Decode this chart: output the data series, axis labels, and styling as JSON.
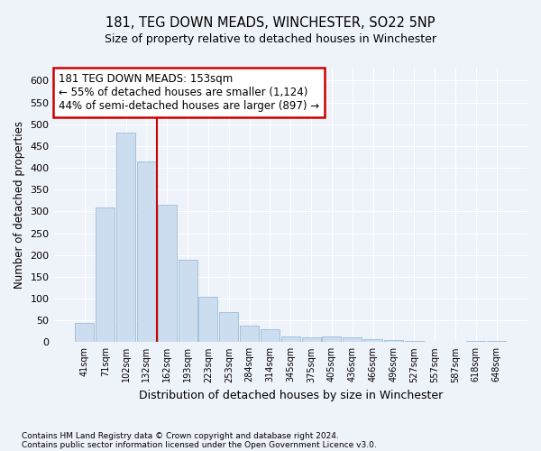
{
  "title": "181, TEG DOWN MEADS, WINCHESTER, SO22 5NP",
  "subtitle": "Size of property relative to detached houses in Winchester",
  "xlabel": "Distribution of detached houses by size in Winchester",
  "ylabel": "Number of detached properties",
  "footnote1": "Contains HM Land Registry data © Crown copyright and database right 2024.",
  "footnote2": "Contains public sector information licensed under the Open Government Licence v3.0.",
  "bar_color": "#cdddf0",
  "bar_edge_color": "#9bbcd8",
  "categories": [
    "41sqm",
    "71sqm",
    "102sqm",
    "132sqm",
    "162sqm",
    "193sqm",
    "223sqm",
    "253sqm",
    "284sqm",
    "314sqm",
    "345sqm",
    "375sqm",
    "405sqm",
    "436sqm",
    "466sqm",
    "496sqm",
    "527sqm",
    "557sqm",
    "587sqm",
    "618sqm",
    "648sqm"
  ],
  "values": [
    45,
    310,
    480,
    415,
    315,
    190,
    105,
    68,
    37,
    30,
    14,
    10,
    13,
    10,
    7,
    5,
    2,
    0,
    0,
    3,
    2
  ],
  "ylim": [
    0,
    630
  ],
  "yticks": [
    0,
    50,
    100,
    150,
    200,
    250,
    300,
    350,
    400,
    450,
    500,
    550,
    600
  ],
  "vline_position": 4.0,
  "vline_color": "#cc0000",
  "annotation_line1": "181 TEG DOWN MEADS: 153sqm",
  "annotation_line2": "← 55% of detached houses are smaller (1,124)",
  "annotation_line3": "44% of semi-detached houses are larger (897) →",
  "annotation_box_color": "#ffffff",
  "annotation_box_edge": "#cc0000",
  "bg_color": "#eef2f9",
  "grid_color": "#ffffff"
}
